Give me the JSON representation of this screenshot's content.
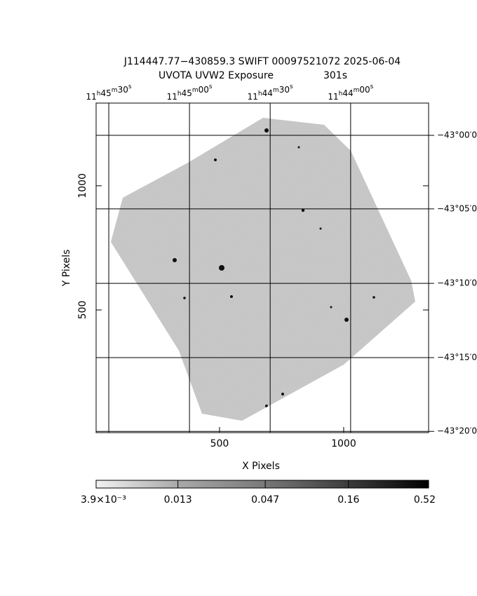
{
  "chart_data": {
    "type": "image",
    "title": "J114447.77−430859.3 SWIFT 00097521072 2025-06-04",
    "subtitle": "UVOTA UVW2 Exposure",
    "exposure": "301s",
    "x_label": "X Pixels",
    "y_label": "Y Pixels",
    "xlim": [
      3,
      1342
    ],
    "ylim": [
      6,
      1333
    ],
    "xticks": [
      500,
      1000
    ],
    "yticks": [
      500,
      1000
    ],
    "ra_ticks": [
      {
        "value": 54,
        "label": "11h45m30s"
      },
      {
        "value": 379,
        "label": "11h45m00s"
      },
      {
        "value": 704,
        "label": "11h44m30s"
      },
      {
        "value": 1028,
        "label": "11h44m00s"
      }
    ],
    "dec_ticks": [
      {
        "value": 1203,
        "label": "−43°00′0"
      },
      {
        "value": 907,
        "label": "−43°05′0"
      },
      {
        "value": 607,
        "label": "−43°10′0"
      },
      {
        "value": 308,
        "label": "−43°15′0"
      },
      {
        "value": 11,
        "label": "−43°20′0"
      }
    ],
    "grid": true,
    "colorbar_scale": "log",
    "colorbar_lim": [
      0.0039,
      0.52
    ],
    "colorbar_ticks": [
      {
        "value": 0.0039,
        "label": "3.9×10⁻³"
      },
      0.013,
      0.047,
      0.16,
      0.52
    ]
  }
}
